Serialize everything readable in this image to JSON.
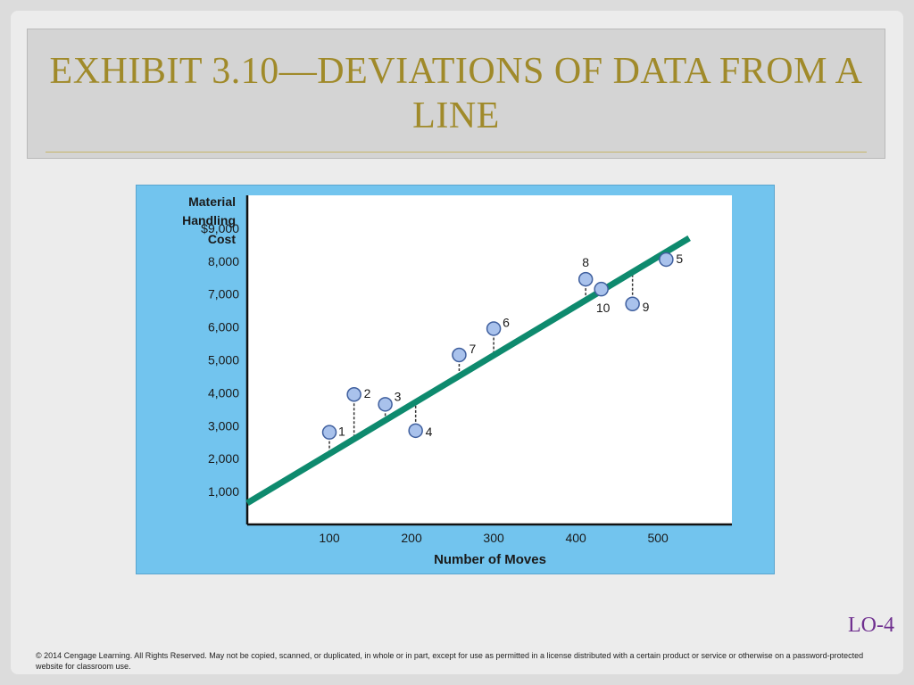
{
  "slide": {
    "title": "EXHIBIT 3.10—DEVIATIONS OF DATA FROM A LINE",
    "lo_tag": "LO-4",
    "footer": "© 2014 Cengage Learning. All Rights Reserved. May not be copied, scanned, or duplicated, in whole or in part, except for use as permitted in a license distributed with a certain product or service or otherwise on a password-protected website for classroom use."
  },
  "colors": {
    "title": "#a08a2a",
    "panel": "#72c4ee",
    "line": "#0e8a6e",
    "point_fill": "#a9c2ec",
    "point_stroke": "#3f5f9e",
    "lo_tag": "#6f2f8f"
  },
  "chart_data": {
    "type": "scatter",
    "ylabel_lines": [
      "Material",
      "Handling",
      "Cost"
    ],
    "xlabel": "Number of Moves",
    "x_ticks": [
      100,
      200,
      300,
      400,
      500
    ],
    "y_ticks": [
      1000,
      2000,
      3000,
      4000,
      5000,
      6000,
      7000,
      8000,
      9000
    ],
    "y_tick_labels": [
      "1,000",
      "2,000",
      "3,000",
      "4,000",
      "5,000",
      "6,000",
      "7,000",
      "8,000",
      "$9,000"
    ],
    "xlim": [
      0,
      590
    ],
    "ylim": [
      0,
      10000
    ],
    "points": [
      {
        "label": "1",
        "x": 100,
        "y": 2800
      },
      {
        "label": "2",
        "x": 130,
        "y": 3950
      },
      {
        "label": "3",
        "x": 168,
        "y": 3650
      },
      {
        "label": "4",
        "x": 205,
        "y": 2850
      },
      {
        "label": "5",
        "x": 510,
        "y": 8050
      },
      {
        "label": "6",
        "x": 300,
        "y": 5950
      },
      {
        "label": "7",
        "x": 258,
        "y": 5150
      },
      {
        "label": "8",
        "x": 412,
        "y": 7450
      },
      {
        "label": "9",
        "x": 469,
        "y": 6700
      },
      {
        "label": "10",
        "x": 431,
        "y": 7150
      }
    ],
    "fit_line": {
      "x": [
        0,
        538
      ],
      "y": [
        650,
        8700
      ]
    }
  }
}
